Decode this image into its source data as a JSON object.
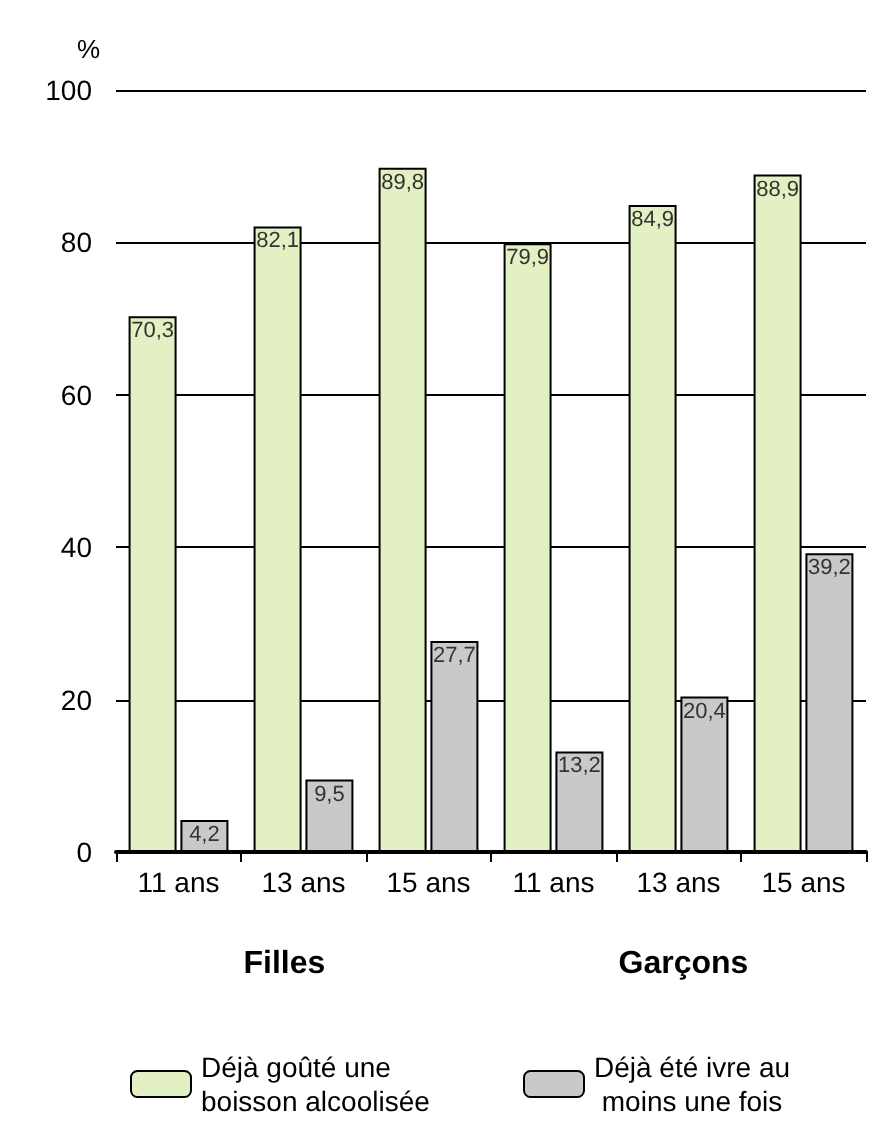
{
  "chart_data": {
    "type": "bar",
    "ylabel": "%",
    "categories": [
      "11 ans",
      "13 ans",
      "15 ans",
      "11 ans",
      "13 ans",
      "15 ans"
    ],
    "series": [
      {
        "name": "Déjà goûté une boisson alcoolisée",
        "color": "#e2f0c4",
        "values": [
          70.3,
          82.1,
          89.8,
          79.9,
          84.9,
          88.9
        ],
        "value_labels": [
          "70,3",
          "82,1",
          "89,8",
          "79,9",
          "84,9",
          "88,9"
        ]
      },
      {
        "name": "Déjà été ivre au moins une fois",
        "color": "#c9c9c9",
        "values": [
          4.2,
          9.5,
          27.7,
          13.2,
          20.4,
          39.2
        ],
        "value_labels": [
          "4,2",
          "9,5",
          "27,7",
          "13,2",
          "20,4",
          "39,2"
        ]
      }
    ],
    "ylim": [
      0,
      100
    ],
    "yticks": [
      0,
      20,
      40,
      60,
      80,
      100
    ],
    "grid": "y",
    "legend": "bottom",
    "annotations": [
      "Filles",
      "Garçons"
    ]
  }
}
